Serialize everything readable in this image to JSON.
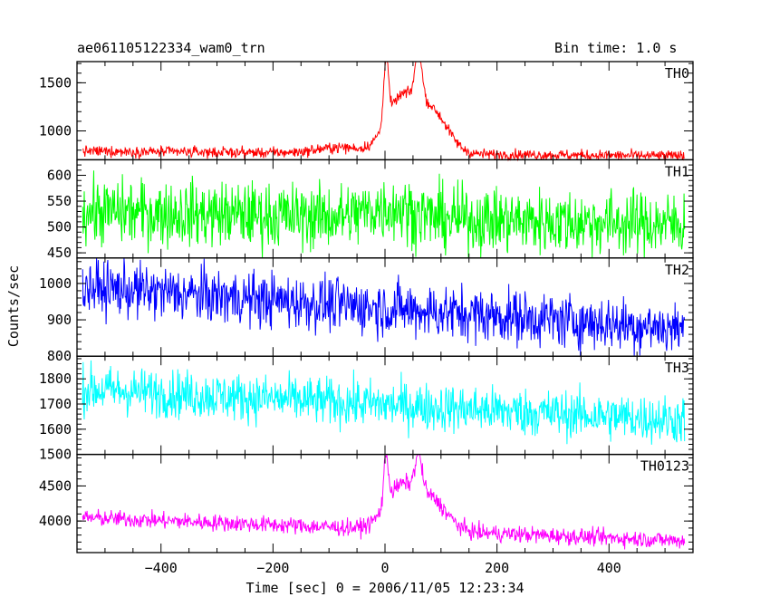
{
  "header": {
    "left_title": "ae061105122334_wam0_trn",
    "right_title": "Bin time: 1.0 s"
  },
  "chart_data": {
    "type": "line",
    "title": "ae061105122334_wam0_trn",
    "subtitle": "Bin time: 1.0 s",
    "xlabel": "Time [sec] 0 = 2006/11/05 12:23:34",
    "ylabel": "Counts/sec",
    "xlim": [
      -550,
      550
    ],
    "x_ticks": [
      -400,
      -200,
      0,
      200,
      400
    ],
    "x_tick_labels": [
      "−400",
      "−200",
      "0",
      "200",
      "400"
    ],
    "x_range_data": [
      -540,
      535
    ],
    "grid": false,
    "panels": [
      {
        "name": "TH0",
        "color": "#ff0000",
        "ylim": [
          700,
          1720
        ],
        "y_ticks": [
          1000,
          1500
        ],
        "y_tick_labels": [
          "1000",
          "1500"
        ],
        "baseline_start": 790,
        "baseline_end": 740,
        "noise": 28,
        "features": [
          {
            "t": -80,
            "width": 40,
            "amp": 60
          },
          {
            "t": 20,
            "width": 25,
            "amp": 350
          },
          {
            "t": 55,
            "width": 30,
            "amp": 400
          },
          {
            "t": 95,
            "width": 25,
            "amp": 250
          },
          {
            "t": 2,
            "width": 4,
            "amp": 700
          },
          {
            "t": 60,
            "width": 6,
            "amp": 500
          }
        ]
      },
      {
        "name": "TH1",
        "color": "#00ff00",
        "ylim": [
          440,
          630
        ],
        "y_ticks": [
          450,
          500,
          550,
          600
        ],
        "y_tick_labels": [
          "450",
          "500",
          "550",
          "600"
        ],
        "baseline_start": 530,
        "baseline_end": 505,
        "noise": 32,
        "features": [
          {
            "t": 10,
            "width": 40,
            "amp": 20
          }
        ]
      },
      {
        "name": "TH2",
        "color": "#0000ff",
        "ylim": [
          800,
          1070
        ],
        "y_ticks": [
          800,
          900,
          1000
        ],
        "y_tick_labels": [
          "800",
          "900",
          "1000"
        ],
        "baseline_start": 990,
        "baseline_end": 875,
        "noise": 38,
        "features": []
      },
      {
        "name": "TH3",
        "color": "#00ffff",
        "ylim": [
          1500,
          1890
        ],
        "y_ticks": [
          1500,
          1600,
          1700,
          1800
        ],
        "y_tick_labels": [
          "1500",
          "1600",
          "1700",
          "1800"
        ],
        "baseline_start": 1760,
        "baseline_end": 1635,
        "noise": 48,
        "features": []
      },
      {
        "name": "TH0123",
        "color": "#ff00ff",
        "ylim": [
          3550,
          4950
        ],
        "y_ticks": [
          4000,
          4500
        ],
        "y_tick_labels": [
          "4000",
          "4500"
        ],
        "baseline_start": 4050,
        "baseline_end": 3720,
        "noise": 60,
        "features": [
          {
            "t": 20,
            "width": 25,
            "amp": 380
          },
          {
            "t": 55,
            "width": 30,
            "amp": 420
          },
          {
            "t": 95,
            "width": 25,
            "amp": 230
          },
          {
            "t": 2,
            "width": 4,
            "amp": 700
          },
          {
            "t": 60,
            "width": 6,
            "amp": 500
          }
        ]
      }
    ]
  }
}
